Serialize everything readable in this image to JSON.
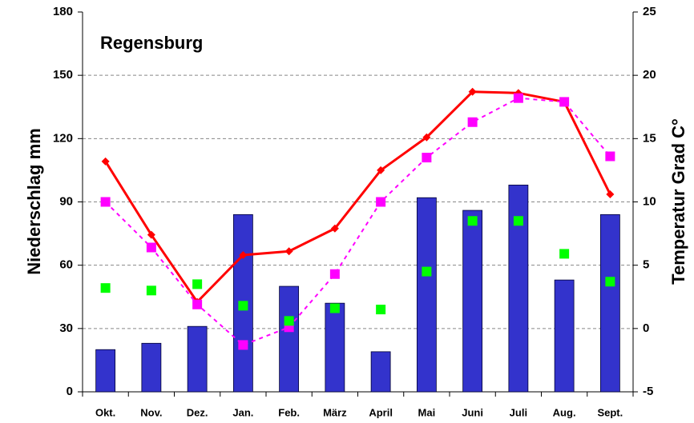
{
  "chart_data": {
    "type": "bar",
    "title": "Regensburg",
    "ylabel": "Niederschlag  mm",
    "y2label": "Temperatur Grad  C°",
    "categories": [
      "Okt.",
      "Nov.",
      "Dez.",
      "Jan.",
      "Feb.",
      "März",
      "April",
      "Mai",
      "Juni",
      "Juli",
      "Aug.",
      "Sept."
    ],
    "ylim": [
      0,
      180
    ],
    "yticks": [
      0,
      30,
      60,
      90,
      120,
      150,
      180
    ],
    "y2lim": [
      -5,
      25
    ],
    "y2ticks": [
      -5,
      0,
      5,
      10,
      15,
      20,
      25
    ],
    "grid": true,
    "series": [
      {
        "type": "bar",
        "color": "#3333cc",
        "values": [
          20,
          23,
          31,
          84,
          50,
          42,
          19,
          92,
          86,
          98,
          53,
          84
        ]
      },
      {
        "type": "line",
        "axis": "y2",
        "color": "#ff0000",
        "marker": "diamond",
        "dashed": false,
        "values": [
          13.2,
          7.4,
          2.1,
          5.8,
          6.1,
          7.9,
          12.5,
          15.1,
          18.7,
          18.6,
          17.9,
          10.6
        ]
      },
      {
        "type": "line",
        "axis": "y2",
        "color": "#ff00ff",
        "marker": "square",
        "dashed": true,
        "values": [
          10.0,
          6.4,
          1.9,
          -1.3,
          0.1,
          4.3,
          10.0,
          13.5,
          16.3,
          18.2,
          17.9,
          13.6
        ]
      },
      {
        "type": "scatter",
        "axis": "y2",
        "color": "#00ff00",
        "marker": "square",
        "values": [
          3.2,
          3.0,
          3.5,
          1.8,
          0.6,
          1.6,
          1.5,
          4.5,
          8.5,
          8.5,
          5.9,
          3.7
        ]
      }
    ]
  }
}
